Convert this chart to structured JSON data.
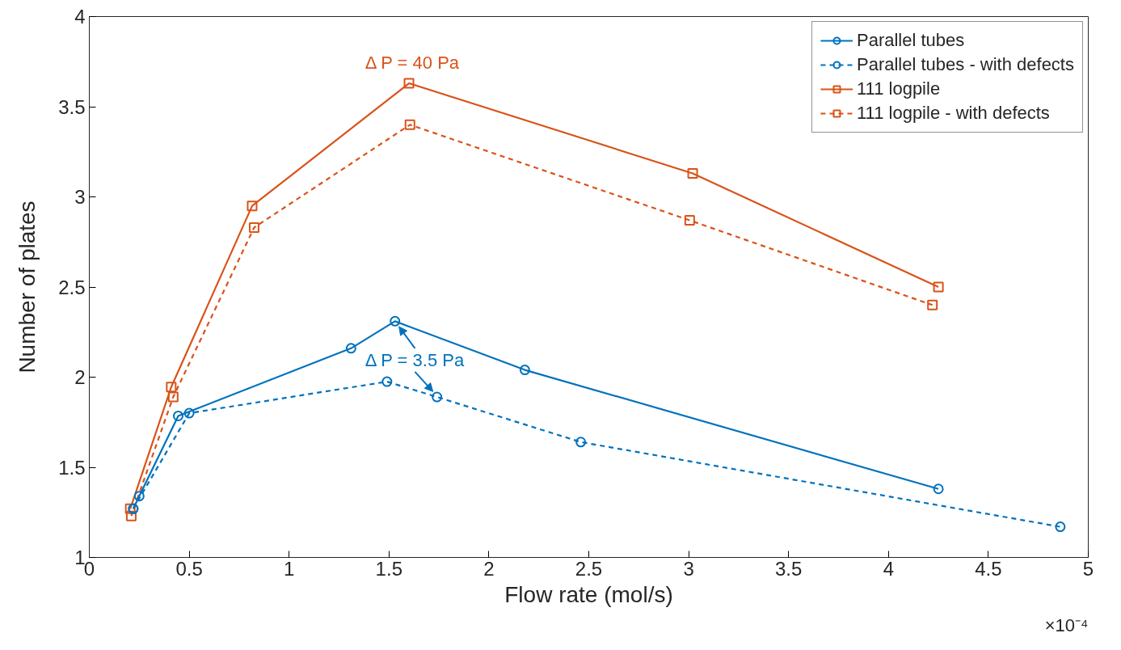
{
  "chart_data": {
    "type": "line",
    "xlabel": "Flow rate (mol/s)",
    "ylabel": "Number of plates",
    "xlim": [
      0,
      5
    ],
    "ylim": [
      1,
      4
    ],
    "xticks": [
      0,
      0.5,
      1,
      1.5,
      2,
      2.5,
      3,
      3.5,
      4,
      4.5,
      5
    ],
    "yticks": [
      1,
      1.5,
      2,
      2.5,
      3,
      3.5,
      4
    ],
    "grid": false,
    "legend": "top right",
    "series": [
      {
        "name": "Parallel tubes",
        "color": "#0072bd",
        "marker": "circle",
        "line_style": "solid",
        "x": [
          0.22,
          0.25,
          0.445,
          1.31,
          1.53,
          2.18,
          4.25
        ],
        "values": [
          1.27,
          1.34,
          1.785,
          2.16,
          2.31,
          2.04,
          1.38
        ]
      },
      {
        "name": "Parallel tubes - with defects",
        "color": "#0072bd",
        "marker": "circle",
        "line_style": "dashed",
        "x": [
          0.22,
          0.5,
          1.49,
          1.74,
          2.46,
          4.86
        ],
        "values": [
          1.27,
          1.8,
          1.975,
          1.89,
          1.64,
          1.17
        ]
      },
      {
        "name": "111 logpile",
        "color": "#d95319",
        "marker": "square",
        "line_style": "solid",
        "x": [
          0.205,
          0.41,
          0.815,
          1.6,
          3.02,
          4.25
        ],
        "values": [
          1.27,
          1.945,
          2.95,
          3.63,
          3.13,
          2.5
        ]
      },
      {
        "name": "111 logpile - with defects",
        "color": "#d95319",
        "marker": "square",
        "line_style": "dashed",
        "x": [
          0.21,
          0.42,
          0.825,
          1.605,
          3.005,
          4.22
        ],
        "values": [
          1.23,
          1.89,
          2.83,
          3.4,
          2.87,
          2.4
        ]
      }
    ],
    "annotations": [
      {
        "text": "Δ P = 40 Pa",
        "x": 1.6,
        "y": 3.63
      },
      {
        "text": "Δ P = 3.5 Pa",
        "x": 1.53,
        "y": 2.31
      },
      "×10⁻⁴"
    ]
  }
}
